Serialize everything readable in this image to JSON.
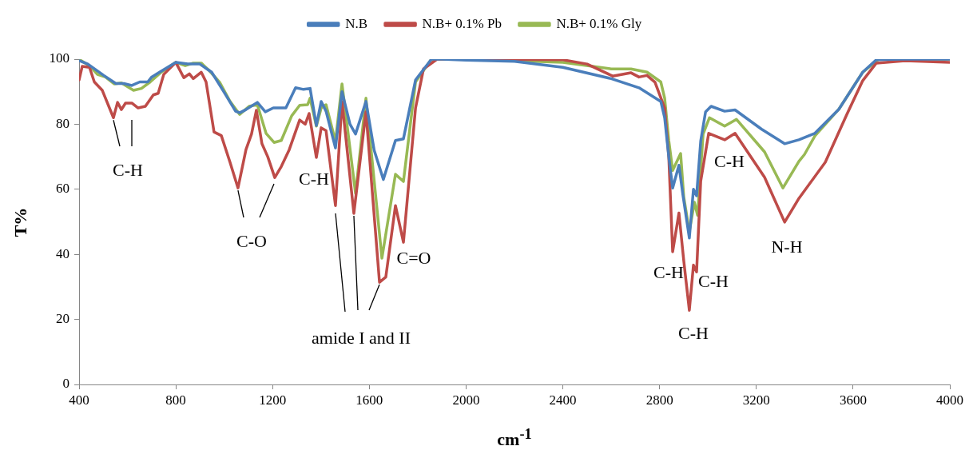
{
  "chart_data": {
    "type": "line",
    "xlabel": "cm$^{-1}$",
    "ylabel": "T%",
    "xlim": [
      400,
      4000
    ],
    "xticks": [
      400,
      800,
      1200,
      1600,
      2000,
      2400,
      2800,
      3200,
      3600,
      4000
    ],
    "ylim": [
      0,
      100
    ],
    "yticks": [
      0,
      20,
      40,
      60,
      80,
      100
    ],
    "grid": false,
    "legend": "top",
    "marker": "none",
    "line_style": "solid",
    "series": [
      {
        "name": "N.B",
        "color": "#4a7ebb",
        "x": [
          403,
          436,
          502,
          552,
          585,
          618,
          651,
          684,
          700,
          733,
          800,
          849,
          899,
          948,
          998,
          1047,
          1064,
          1090,
          1137,
          1170,
          1203,
          1255,
          1295,
          1328,
          1355,
          1381,
          1401,
          1421,
          1460,
          1487,
          1520,
          1543,
          1586,
          1620,
          1658,
          1708,
          1741,
          1791,
          1857,
          1900,
          2000,
          2200,
          2400,
          2600,
          2715,
          2805,
          2821,
          2838,
          2854,
          2880,
          2897,
          2923,
          2940,
          2953,
          2970,
          2990,
          3013,
          3069,
          3112,
          3221,
          3317,
          3376,
          3442,
          3541,
          3640,
          3696,
          3800,
          4000
        ],
        "values": [
          99.5,
          98.5,
          95,
          92.5,
          92.5,
          91.9,
          93,
          93,
          94.5,
          96,
          99,
          98.5,
          98.5,
          96,
          90,
          84,
          83.5,
          84.5,
          86.7,
          83.8,
          85,
          85,
          91.2,
          90.7,
          91,
          79.6,
          87,
          84,
          72.7,
          90,
          80,
          77,
          87,
          72,
          63,
          75,
          75.5,
          93.6,
          100,
          100,
          99.7,
          99.3,
          97.5,
          94,
          91.2,
          87,
          82,
          70,
          60.4,
          67.4,
          58,
          45,
          60,
          58,
          74.8,
          83.8,
          85.5,
          84,
          84.4,
          78.5,
          74,
          75.2,
          77.2,
          84.6,
          96,
          99.8,
          100,
          100
        ]
      },
      {
        "name": "N.B+ 0.1% Pb",
        "color": "#be4b48",
        "x": [
          400,
          413,
          443,
          463,
          496,
          542,
          559,
          575,
          592,
          618,
          644,
          674,
          707,
          727,
          750,
          800,
          833,
          856,
          872,
          905,
          925,
          958,
          988,
          1024,
          1057,
          1090,
          1113,
          1133,
          1156,
          1180,
          1209,
          1236,
          1269,
          1312,
          1335,
          1351,
          1381,
          1401,
          1421,
          1460,
          1487,
          1536,
          1586,
          1642,
          1668,
          1708,
          1741,
          1791,
          1824,
          1880,
          2000,
          2400,
          2500,
          2606,
          2682,
          2715,
          2748,
          2781,
          2821,
          2838,
          2854,
          2880,
          2900,
          2923,
          2940,
          2953,
          2970,
          3003,
          3069,
          3112,
          3234,
          3317,
          3376,
          3485,
          3574,
          3640,
          3696,
          3815,
          4000
        ],
        "values": [
          93.6,
          97.8,
          97.5,
          93,
          90.4,
          82,
          86.7,
          84.5,
          86.5,
          86.5,
          85,
          85.5,
          89,
          89.5,
          95.3,
          99,
          94.3,
          95.5,
          94,
          96,
          93,
          77.6,
          76.5,
          68.3,
          60.4,
          72.2,
          77,
          84.3,
          74,
          70,
          63.6,
          67,
          72.2,
          81.3,
          80,
          83.3,
          69.8,
          78.9,
          78,
          55,
          87,
          52.6,
          83.8,
          31.4,
          33,
          55,
          43.7,
          85,
          97,
          100,
          100,
          99.8,
          98.5,
          94.8,
          95.8,
          94.5,
          95,
          92.9,
          85,
          70,
          40.8,
          52.7,
          38,
          22.8,
          36.7,
          34.6,
          62.5,
          77.2,
          75.2,
          77.2,
          63.7,
          49.9,
          57.2,
          68.3,
          83,
          93.4,
          98.8,
          99.5,
          99
        ]
      },
      {
        "name": "N.B+ 0.1% Gly",
        "color": "#98b954",
        "x": [
          403,
          443,
          476,
          509,
          545,
          575,
          625,
          658,
          694,
          740,
          800,
          839,
          872,
          905,
          938,
          981,
          1024,
          1064,
          1103,
          1137,
          1173,
          1206,
          1236,
          1279,
          1312,
          1345,
          1355,
          1381,
          1401,
          1421,
          1460,
          1487,
          1543,
          1586,
          1652,
          1708,
          1741,
          1791,
          1857,
          2000,
          2400,
          2600,
          2682,
          2748,
          2805,
          2821,
          2838,
          2854,
          2887,
          2900,
          2923,
          2944,
          2957,
          2980,
          3006,
          3069,
          3118,
          3234,
          3310,
          3376,
          3399,
          3442,
          3541,
          3640,
          3706,
          4000
        ],
        "values": [
          99.8,
          98,
          95.3,
          94.5,
          92.4,
          92.7,
          90.4,
          91,
          93,
          96,
          99,
          98,
          98.8,
          98.8,
          96.5,
          92.9,
          87,
          83,
          85.5,
          86,
          77.2,
          74.4,
          75,
          82.6,
          85.8,
          86,
          88,
          79.4,
          85,
          86,
          74.7,
          92.4,
          58.7,
          88,
          38.8,
          64.6,
          62.4,
          93,
          100,
          100,
          99,
          97,
          97,
          96,
          93,
          88,
          75,
          65.8,
          71,
          57.6,
          47,
          56,
          52,
          77,
          82,
          79.4,
          81.5,
          71.5,
          60.4,
          68.6,
          70.7,
          76.4,
          84.6,
          96,
          100,
          100
        ]
      }
    ],
    "annotations": [
      {
        "text": "C-H",
        "x": 542,
        "y": 82
      },
      {
        "text": "C-O",
        "x": 1057,
        "y": 60.4
      },
      "C-H",
      {
        "text": "amide I and II",
        "x": 1536,
        "y": 52.6
      },
      "C=O",
      "C-H",
      "C-H",
      "C-H",
      "C-H",
      "N-H"
    ]
  }
}
